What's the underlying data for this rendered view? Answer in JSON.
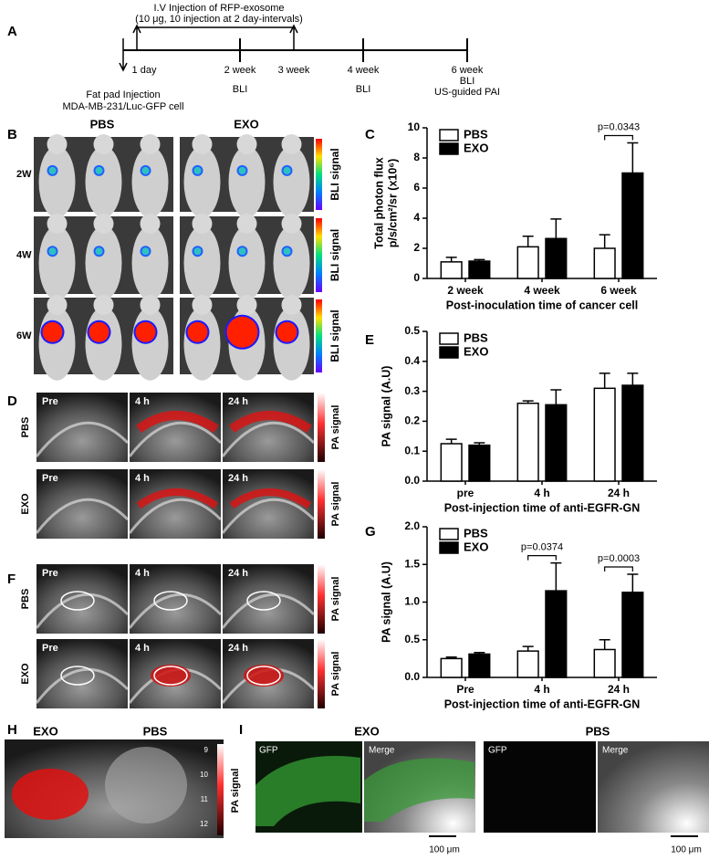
{
  "panel_labels": [
    "A",
    "B",
    "C",
    "D",
    "E",
    "F",
    "G",
    "H",
    "I"
  ],
  "timeline": {
    "title": "I.V Injection of RFP-exosome",
    "subtitle": "(10 μg, 10 injection at 2 day-intervals)",
    "points": [
      "1 day",
      "2 week",
      "3 week",
      "4 week",
      "6 week"
    ],
    "start": [
      "Fat pad Injection",
      "MDA-MB-231/Luc-GFP  cell"
    ],
    "bli": "BLI",
    "pai": "US-guided PAI"
  },
  "bli_panel": {
    "groups": [
      "PBS",
      "EXO"
    ],
    "rows": [
      "2W",
      "4W",
      "6W"
    ],
    "scale_label": "BLI signal"
  },
  "pa_panels": {
    "rows": [
      "PBS",
      "EXO"
    ],
    "times": [
      "Pre",
      "4 h",
      "24 h"
    ],
    "scale_label": "PA signal"
  },
  "h_panel": {
    "labels": [
      "EXO",
      "PBS"
    ],
    "scale_ticks": [
      "9",
      "10",
      "11",
      "12"
    ],
    "scale_label": "PA signal"
  },
  "i_panel": {
    "groups": [
      "EXO",
      "PBS"
    ],
    "channels": [
      "GFP",
      "Merge"
    ],
    "scale_bar": "100 μm"
  },
  "chart_data": [
    {
      "type": "bar",
      "ylabel": "Total photon flux",
      "ylabel_unit": "p/s/cm²/sr (x10⁶)",
      "xlabel": "Post-inoculation time of cancer cell",
      "categories": [
        "2 week",
        "4 week",
        "6 week"
      ],
      "series": [
        {
          "name": "PBS",
          "color": "#ffffff",
          "values": [
            1.1,
            2.1,
            2.0
          ],
          "errors": [
            0.3,
            0.7,
            0.9
          ]
        },
        {
          "name": "EXO",
          "color": "#000000",
          "values": [
            1.15,
            2.65,
            7.0
          ],
          "errors": [
            0.1,
            1.3,
            2.0
          ]
        }
      ],
      "ylim": [
        0,
        10
      ],
      "yticks": [
        0,
        2,
        4,
        6,
        8,
        10
      ],
      "annotations": [
        "p=0.0343"
      ],
      "legend": "upper left"
    },
    {
      "type": "bar",
      "ylabel": "PA signal (A.U)",
      "xlabel": "Post-injection time of anti-EGFR-GN",
      "categories": [
        "pre",
        "4 h",
        "24 h"
      ],
      "series": [
        {
          "name": "PBS",
          "color": "#ffffff",
          "values": [
            0.125,
            0.26,
            0.31
          ],
          "errors": [
            0.015,
            0.008,
            0.05
          ]
        },
        {
          "name": "EXO",
          "color": "#000000",
          "values": [
            0.12,
            0.255,
            0.32
          ],
          "errors": [
            0.008,
            0.05,
            0.04
          ]
        }
      ],
      "ylim": [
        0,
        0.5
      ],
      "yticks": [
        {
          "value": 0,
          "label": "0.0"
        },
        0.1,
        0.2,
        0.3,
        0.4,
        0.5
      ],
      "annotations": [],
      "legend": "upper left"
    },
    {
      "type": "bar",
      "ylabel": "PA signal (A.U)",
      "xlabel": "Post-injection time of anti-EGFR-GN",
      "categories": [
        "Pre",
        "4 h",
        "24 h"
      ],
      "series": [
        {
          "name": "PBS",
          "color": "#ffffff",
          "values": [
            0.25,
            0.35,
            0.37
          ],
          "errors": [
            0.02,
            0.06,
            0.13
          ]
        },
        {
          "name": "EXO",
          "color": "#000000",
          "values": [
            0.31,
            1.15,
            1.13
          ],
          "errors": [
            0.02,
            0.37,
            0.24
          ]
        }
      ],
      "ylim": [
        0,
        2
      ],
      "yticks": [
        {
          "value": 0,
          "label": "0.0"
        },
        0.5,
        {
          "value": 1,
          "label": "1.0"
        },
        1.5,
        {
          "value": 2,
          "label": "2.0"
        }
      ],
      "annotations": [
        "p=0.0374",
        "p=0.0003"
      ],
      "legend": "upper left"
    }
  ]
}
